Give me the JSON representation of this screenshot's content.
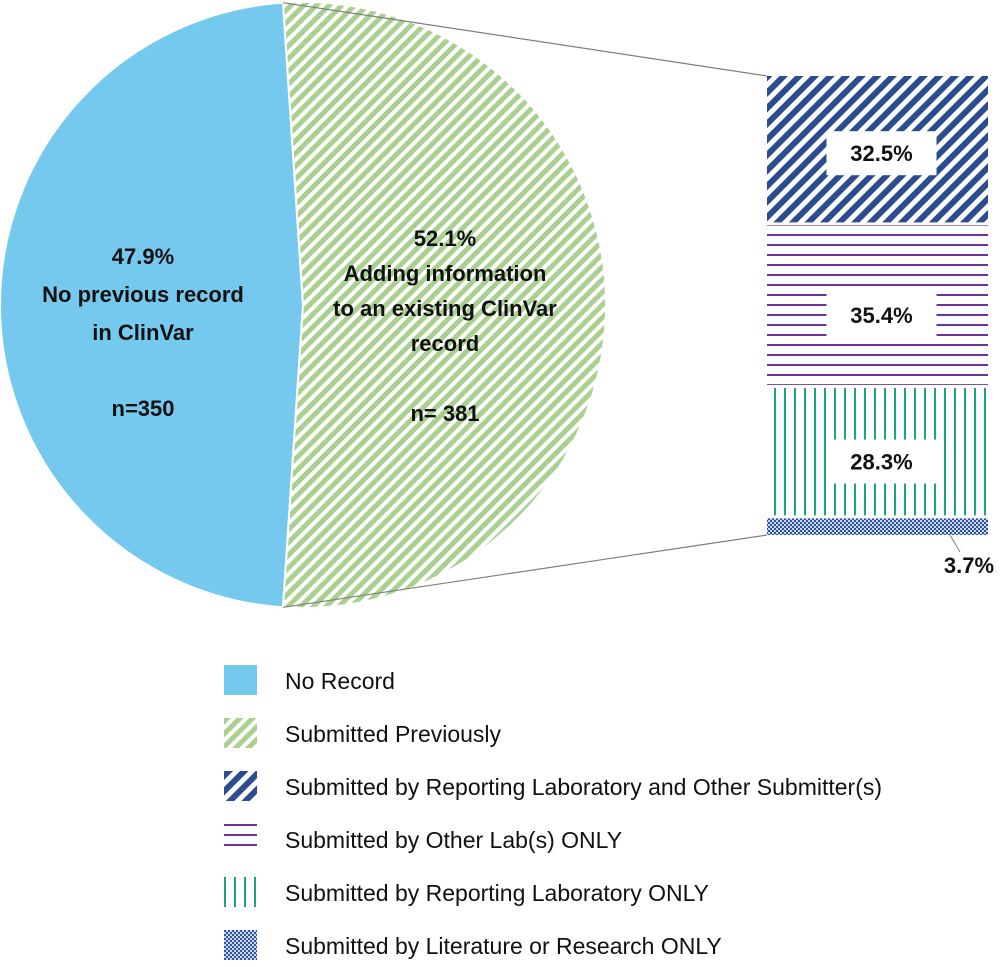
{
  "colors": {
    "no_record": "#76c9ee",
    "submitted_previously": "#a9d08e",
    "reporting_and_other": "#2c4c8f",
    "other_lab_only": "#7030a0",
    "reporting_lab_only": "#19a67c",
    "literature_only": "#2f5597"
  },
  "chart_data": {
    "type": "bar-of-pie",
    "pie": {
      "slices": [
        {
          "key": "no_record",
          "value": 47.9,
          "label_lines": [
            "47.9%",
            "No previous record",
            "in ClinVar",
            "",
            "n=350"
          ]
        },
        {
          "key": "submitted_previously",
          "value": 52.1,
          "label_lines": [
            "52.1%",
            "Adding information",
            "to an existing ClinVar",
            "record",
            "",
            "n= 381"
          ]
        }
      ]
    },
    "bar": {
      "of_slice": "submitted_previously",
      "segments": [
        {
          "key": "reporting_and_other",
          "value": 32.5,
          "label": "32.5%"
        },
        {
          "key": "other_lab_only",
          "value": 35.4,
          "label": "35.4%"
        },
        {
          "key": "reporting_lab_only",
          "value": 28.3,
          "label": "28.3%"
        },
        {
          "key": "literature_only",
          "value": 3.7,
          "label": "3.7%"
        }
      ]
    },
    "legend": {
      "placement": "bottom",
      "items": [
        {
          "key": "no_record",
          "label": "No Record"
        },
        {
          "key": "submitted_previously",
          "label": "Submitted Previously"
        },
        {
          "key": "reporting_and_other",
          "label": "Submitted by Reporting Laboratory and Other Submitter(s)"
        },
        {
          "key": "other_lab_only",
          "label": "Submitted by Other Lab(s) ONLY"
        },
        {
          "key": "reporting_lab_only",
          "label": "Submitted by Reporting Laboratory ONLY"
        },
        {
          "key": "literature_only",
          "label": "Submitted by Literature or Research ONLY"
        }
      ]
    }
  }
}
